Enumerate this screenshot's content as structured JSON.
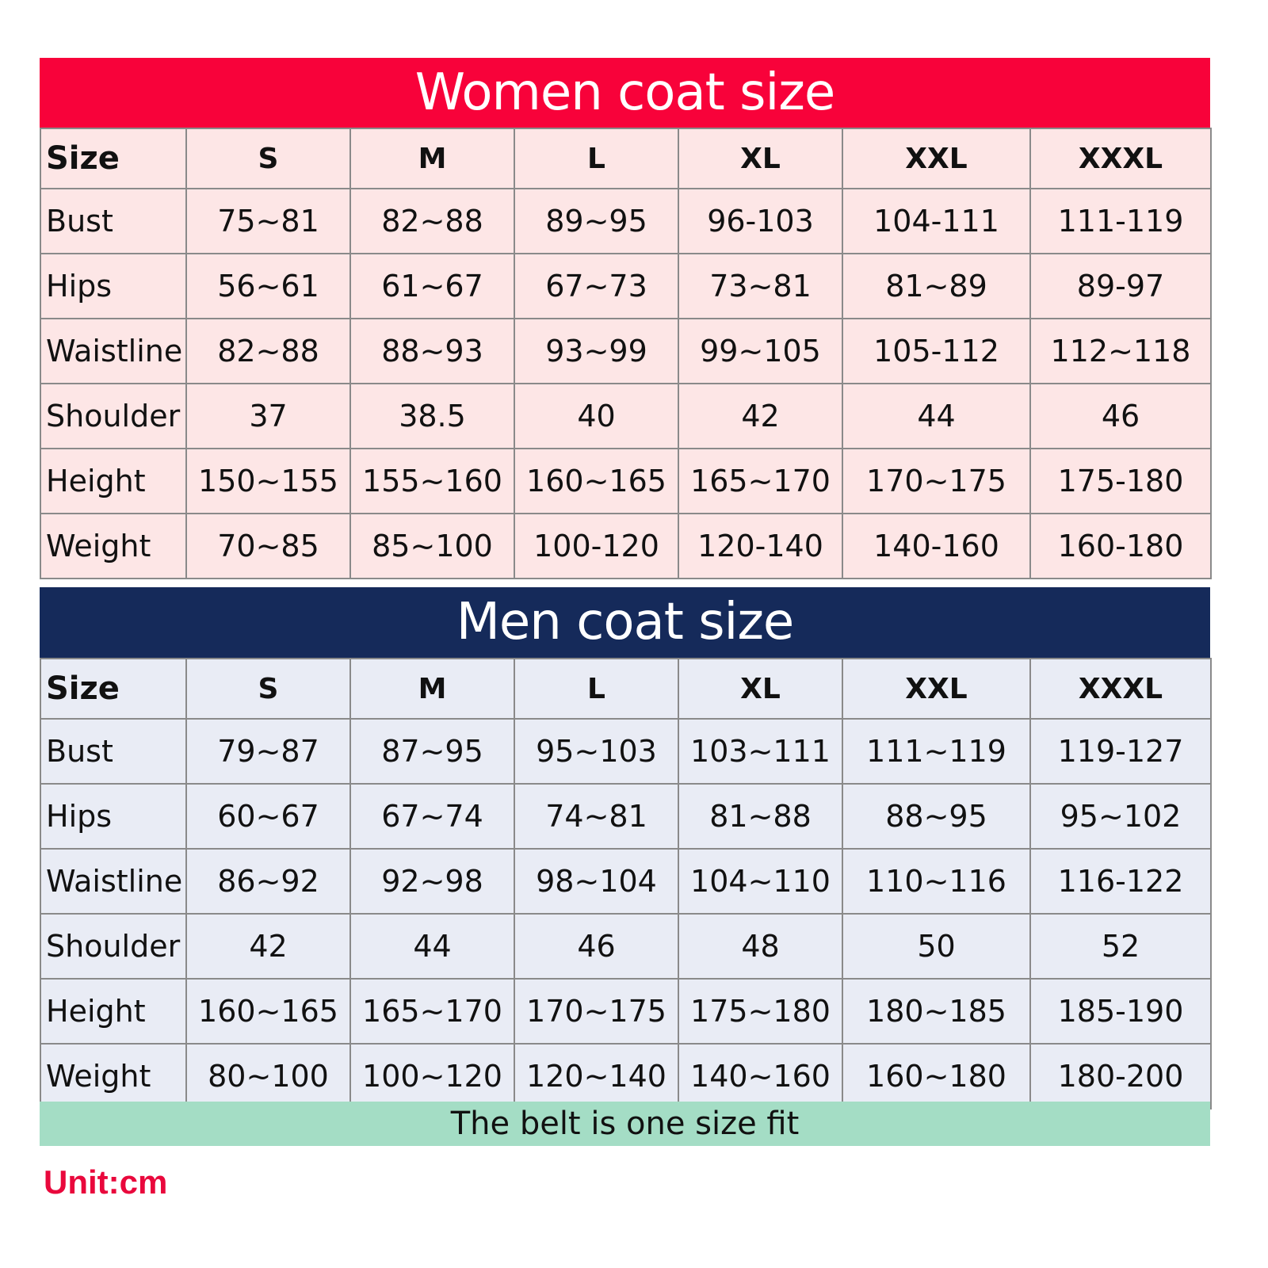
{
  "women": {
    "title": "Women coat size",
    "header": [
      "Size",
      "S",
      "M",
      "L",
      "XL",
      "XXL",
      "XXXL"
    ],
    "rows": [
      {
        "label": "Bust",
        "values": [
          "75~81",
          "82~88",
          "89~95",
          "96-103",
          "104-111",
          "111-119"
        ]
      },
      {
        "label": "Hips",
        "values": [
          "56~61",
          "61~67",
          "67~73",
          "73~81",
          "81~89",
          "89-97"
        ]
      },
      {
        "label": "Waistline",
        "values": [
          "82~88",
          "88~93",
          "93~99",
          "99~105",
          "105-112",
          "112~118"
        ]
      },
      {
        "label": "Shoulder",
        "values": [
          "37",
          "38.5",
          "40",
          "42",
          "44",
          "46"
        ]
      },
      {
        "label": "Height",
        "values": [
          "150~155",
          "155~160",
          "160~165",
          "165~170",
          "170~175",
          "175-180"
        ]
      },
      {
        "label": "Weight",
        "values": [
          "70~85",
          "85~100",
          "100-120",
          "120-140",
          "140-160",
          "160-180"
        ]
      }
    ]
  },
  "men": {
    "title": "Men coat size",
    "header": [
      "Size",
      "S",
      "M",
      "L",
      "XL",
      "XXL",
      "XXXL"
    ],
    "rows": [
      {
        "label": "Bust",
        "values": [
          "79~87",
          "87~95",
          "95~103",
          "103~111",
          "111~119",
          "119-127"
        ]
      },
      {
        "label": "Hips",
        "values": [
          "60~67",
          "67~74",
          "74~81",
          "81~88",
          "88~95",
          "95~102"
        ]
      },
      {
        "label": "Waistline",
        "values": [
          "86~92",
          "92~98",
          "98~104",
          "104~110",
          "110~116",
          "116-122"
        ]
      },
      {
        "label": "Shoulder",
        "values": [
          "42",
          "44",
          "46",
          "48",
          "50",
          "52"
        ]
      },
      {
        "label": "Height",
        "values": [
          "160~165",
          "165~170",
          "170~175",
          "175~180",
          "180~185",
          "185-190"
        ]
      },
      {
        "label": "Weight",
        "values": [
          "80~100",
          "100~120",
          "120~140",
          "140~160",
          "160~180",
          "180-200"
        ]
      }
    ]
  },
  "footer": {
    "belt_note": "The belt is one size fit",
    "unit": "Unit:cm"
  },
  "colors": {
    "women_header": "#f8023a",
    "men_header": "#152a5a",
    "women_cells": "#fde6e6",
    "men_cells": "#e9ecf5",
    "belt_bar": "#a4ddc5",
    "unit_text": "#e9083c"
  }
}
